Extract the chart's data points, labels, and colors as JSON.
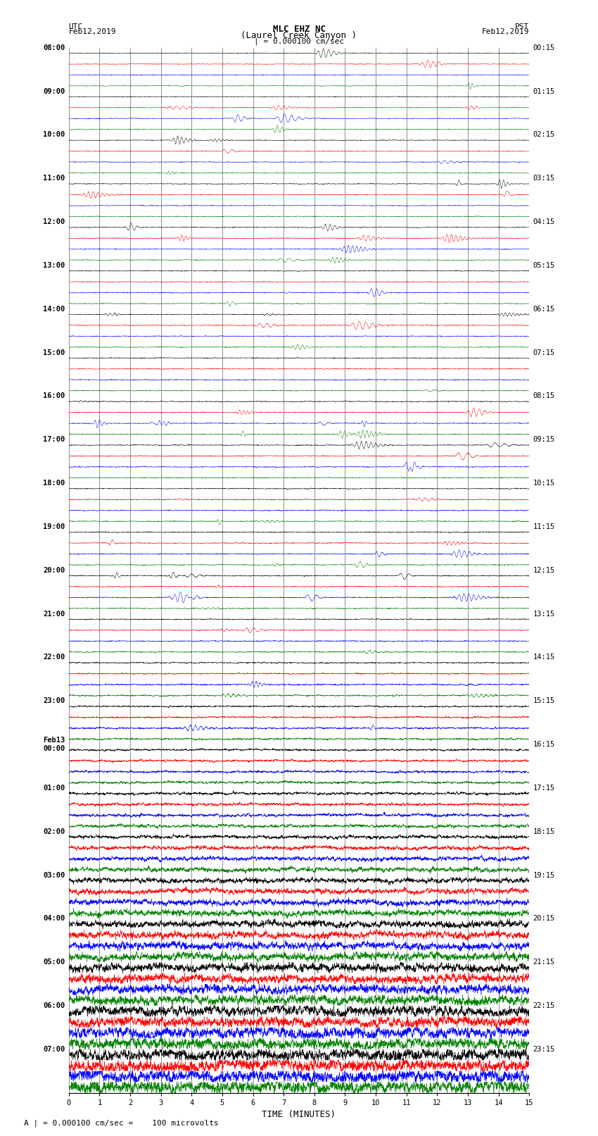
{
  "title_line1": "MLC EHZ NC",
  "title_line2": "(Laurel Creek Canyon )",
  "title_scale": "| = 0.000100 cm/sec",
  "label_left_top": "UTC",
  "label_left_date": "Feb12,2019",
  "label_right_top": "PST",
  "label_right_date": "Feb12,2019",
  "xlabel": "TIME (MINUTES)",
  "footer": "A | = 0.000100 cm/sec =    100 microvolts",
  "xlim": [
    0,
    15
  ],
  "xticks": [
    0,
    1,
    2,
    3,
    4,
    5,
    6,
    7,
    8,
    9,
    10,
    11,
    12,
    13,
    14,
    15
  ],
  "colors": [
    "black",
    "red",
    "blue",
    "green"
  ],
  "utc_times": [
    "08:00",
    "",
    "",
    "",
    "09:00",
    "",
    "",
    "",
    "10:00",
    "",
    "",
    "",
    "11:00",
    "",
    "",
    "",
    "12:00",
    "",
    "",
    "",
    "13:00",
    "",
    "",
    "",
    "14:00",
    "",
    "",
    "",
    "15:00",
    "",
    "",
    "",
    "16:00",
    "",
    "",
    "",
    "17:00",
    "",
    "",
    "",
    "18:00",
    "",
    "",
    "",
    "19:00",
    "",
    "",
    "",
    "20:00",
    "",
    "",
    "",
    "21:00",
    "",
    "",
    "",
    "22:00",
    "",
    "",
    "",
    "23:00",
    "",
    "",
    "",
    "Feb13\n00:00",
    "",
    "",
    "",
    "01:00",
    "",
    "",
    "",
    "02:00",
    "",
    "",
    "",
    "03:00",
    "",
    "",
    "",
    "04:00",
    "",
    "",
    "",
    "05:00",
    "",
    "",
    "",
    "06:00",
    "",
    "",
    "",
    "07:00",
    "",
    "",
    ""
  ],
  "pst_times": [
    "00:15",
    "",
    "",
    "",
    "01:15",
    "",
    "",
    "",
    "02:15",
    "",
    "",
    "",
    "03:15",
    "",
    "",
    "",
    "04:15",
    "",
    "",
    "",
    "05:15",
    "",
    "",
    "",
    "06:15",
    "",
    "",
    "",
    "07:15",
    "",
    "",
    "",
    "08:15",
    "",
    "",
    "",
    "09:15",
    "",
    "",
    "",
    "10:15",
    "",
    "",
    "",
    "11:15",
    "",
    "",
    "",
    "12:15",
    "",
    "",
    "",
    "13:15",
    "",
    "",
    "",
    "14:15",
    "",
    "",
    "",
    "15:15",
    "",
    "",
    "",
    "16:15",
    "",
    "",
    "",
    "17:15",
    "",
    "",
    "",
    "18:15",
    "",
    "",
    "",
    "19:15",
    "",
    "",
    "",
    "20:15",
    "",
    "",
    "",
    "21:15",
    "",
    "",
    "",
    "22:15",
    "",
    "",
    "",
    "23:15",
    "",
    "",
    ""
  ],
  "n_rows": 96,
  "noise_seed": 42,
  "bg_color": "white",
  "title_fontsize": 9,
  "label_fontsize": 8,
  "tick_fontsize": 7.5,
  "time_label_fontsize": 7.5
}
